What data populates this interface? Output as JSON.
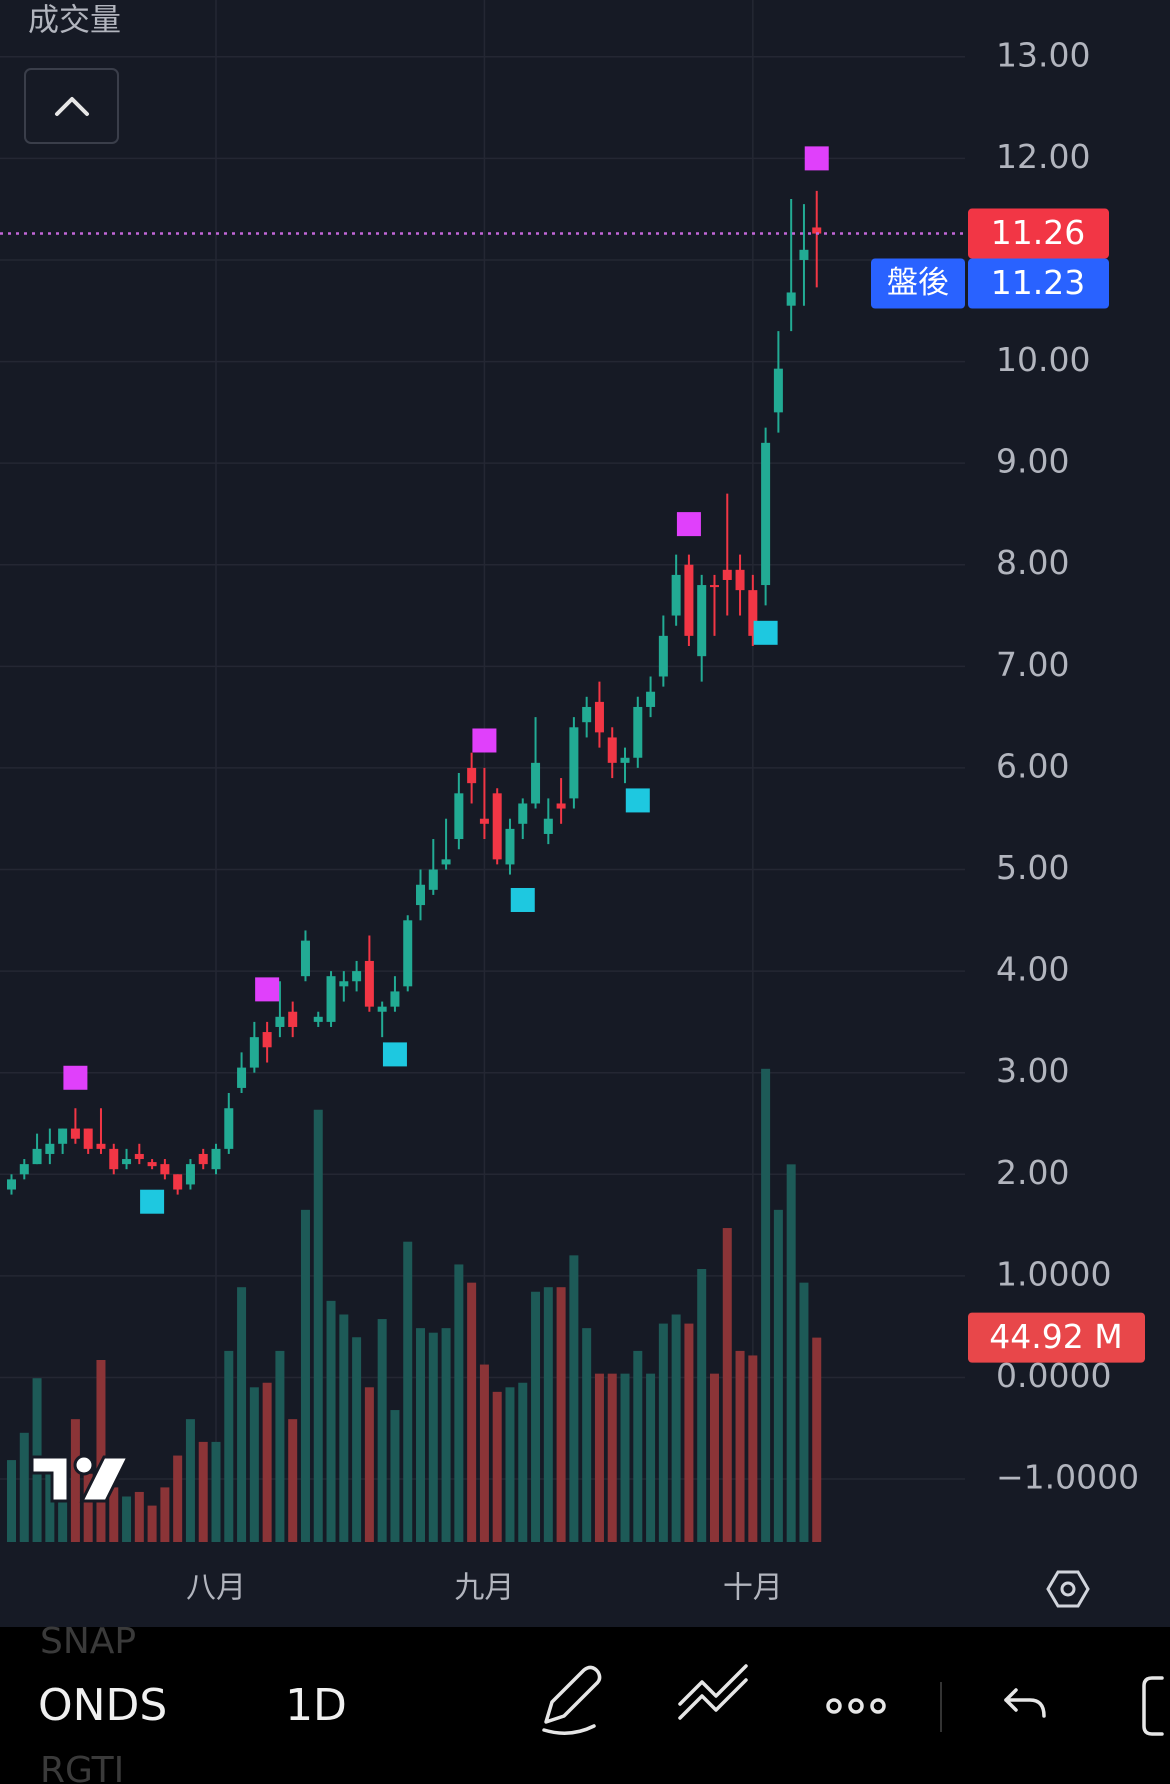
{
  "volume_label": "成交量",
  "chart_data": {
    "type": "candlestick",
    "up_color": "#22ab94",
    "down_color": "#f23645",
    "volume_up_color": "#1d5a57",
    "volume_down_color": "#8b3437",
    "ylim": [
      -1.6,
      13.5
    ],
    "yticks": [
      {
        "value": 13,
        "label": "13.00"
      },
      {
        "value": 12,
        "label": "12.00"
      },
      {
        "value": 11,
        "label": "11.00"
      },
      {
        "value": 10,
        "label": "10.00"
      },
      {
        "value": 9,
        "label": "9.00"
      },
      {
        "value": 8,
        "label": "8.00"
      },
      {
        "value": 7,
        "label": "7.00"
      },
      {
        "value": 6,
        "label": "6.00"
      },
      {
        "value": 5,
        "label": "5.00"
      },
      {
        "value": 4,
        "label": "4.00"
      },
      {
        "value": 3,
        "label": "3.00"
      },
      {
        "value": 2,
        "label": "2.00"
      },
      {
        "value": 1,
        "label": "1.0000"
      },
      {
        "value": 0,
        "label": "0.0000"
      },
      {
        "value": -1,
        "label": "−1.0000"
      }
    ],
    "xlim": [
      -0.9,
      74.6
    ],
    "xticks": [
      {
        "value": 16,
        "label": "八月"
      },
      {
        "value": 37,
        "label": "九月"
      },
      {
        "value": 58,
        "label": "十月"
      }
    ],
    "open": [
      1.85,
      2.0,
      2.1,
      2.2,
      2.3,
      2.45,
      2.45,
      2.3,
      2.25,
      2.1,
      2.2,
      2.12,
      2.1,
      2.0,
      1.9,
      2.2,
      2.05,
      2.25,
      2.85,
      3.05,
      3.4,
      3.45,
      3.6,
      3.95,
      3.5,
      3.5,
      3.85,
      3.9,
      4.1,
      3.6,
      3.65,
      3.85,
      4.65,
      4.8,
      5.05,
      5.3,
      6.0,
      5.5,
      5.75,
      5.05,
      5.45,
      5.65,
      5.35,
      5.65,
      5.7,
      6.45,
      6.65,
      6.3,
      6.05,
      6.1,
      6.6,
      6.9,
      7.5,
      8.0,
      7.1,
      7.8,
      7.95,
      7.95,
      7.75,
      7.8,
      9.5,
      10.55,
      11.0,
      11.32
    ],
    "high": [
      2.0,
      2.15,
      2.4,
      2.45,
      2.45,
      2.65,
      2.45,
      2.65,
      2.3,
      2.25,
      2.3,
      2.15,
      2.15,
      2.0,
      2.15,
      2.25,
      2.3,
      2.8,
      3.2,
      3.5,
      3.5,
      3.9,
      3.7,
      4.4,
      3.6,
      4.0,
      4.0,
      4.1,
      4.35,
      3.7,
      3.95,
      4.55,
      5.0,
      5.3,
      5.5,
      5.95,
      6.15,
      6.0,
      5.8,
      5.5,
      5.7,
      6.5,
      5.7,
      5.9,
      6.5,
      6.7,
      6.85,
      6.4,
      6.2,
      6.7,
      6.9,
      7.5,
      8.1,
      8.1,
      7.9,
      7.9,
      8.7,
      8.1,
      7.9,
      9.35,
      10.3,
      11.6,
      11.55,
      11.68
    ],
    "low": [
      1.8,
      1.95,
      2.1,
      2.1,
      2.2,
      2.3,
      2.2,
      2.2,
      2.0,
      2.05,
      2.1,
      2.05,
      1.95,
      1.8,
      1.85,
      2.05,
      2.0,
      2.2,
      2.8,
      3.0,
      3.1,
      3.35,
      3.35,
      3.9,
      3.45,
      3.45,
      3.7,
      3.8,
      3.6,
      3.35,
      3.6,
      3.8,
      4.5,
      4.75,
      5.0,
      5.2,
      5.65,
      5.3,
      5.05,
      4.95,
      5.3,
      5.6,
      5.25,
      5.45,
      5.6,
      6.3,
      6.2,
      5.9,
      5.85,
      6.0,
      6.5,
      6.8,
      7.4,
      7.2,
      6.85,
      7.3,
      7.5,
      7.5,
      7.2,
      7.6,
      9.3,
      10.3,
      10.55,
      10.73
    ],
    "close": [
      1.95,
      2.1,
      2.25,
      2.3,
      2.45,
      2.35,
      2.25,
      2.25,
      2.05,
      2.15,
      2.15,
      2.08,
      2.0,
      1.85,
      2.1,
      2.1,
      2.25,
      2.65,
      3.05,
      3.35,
      3.25,
      3.55,
      3.45,
      4.3,
      3.55,
      3.95,
      3.9,
      4.0,
      3.65,
      3.65,
      3.8,
      4.5,
      4.85,
      5.0,
      5.1,
      5.75,
      5.85,
      5.45,
      5.1,
      5.4,
      5.65,
      6.05,
      5.5,
      5.6,
      6.4,
      6.6,
      6.35,
      6.05,
      6.1,
      6.6,
      6.75,
      7.3,
      7.9,
      7.3,
      7.8,
      7.78,
      7.85,
      7.75,
      7.3,
      9.2,
      9.93,
      10.68,
      11.1,
      11.26
    ],
    "volume": {
      "vlim": [
        0,
        100
      ],
      "values": [
        18,
        24,
        36,
        18,
        10,
        27,
        15,
        40,
        12,
        10,
        11,
        8,
        12,
        19,
        27,
        22,
        22,
        42,
        56,
        34,
        35,
        42,
        27,
        73,
        95,
        53,
        50,
        45,
        34,
        49,
        29,
        66,
        47,
        46,
        47,
        61,
        57,
        39,
        33,
        34,
        35,
        55,
        56,
        56,
        63,
        47,
        37,
        37,
        37,
        42,
        37,
        48,
        50,
        48,
        60,
        37,
        69,
        42,
        41,
        104,
        73,
        83,
        57,
        44.92
      ],
      "value_labels": [
        null,
        null,
        null,
        null,
        null,
        null,
        null,
        null,
        null,
        null,
        null,
        null,
        null,
        null,
        null,
        null,
        null,
        null,
        null,
        null,
        null,
        null,
        null,
        null,
        null,
        null,
        null,
        null,
        null,
        null,
        null,
        null,
        null,
        null,
        null,
        null,
        null,
        null,
        null,
        null,
        null,
        null,
        null,
        null,
        null,
        null,
        null,
        null,
        null,
        null,
        null,
        null,
        null,
        null,
        null,
        null,
        null,
        null,
        null,
        null,
        null,
        null,
        null,
        "44.92 M"
      ]
    },
    "signals": {
      "high": {
        "color": "#e040fb",
        "x": [
          5,
          20,
          37,
          53,
          63
        ],
        "values": [
          2.95,
          3.82,
          6.27,
          8.4,
          12.0
        ]
      },
      "low": {
        "color": "#1ec8e0",
        "x": [
          11,
          30,
          40,
          49,
          59
        ],
        "values": [
          1.73,
          3.18,
          4.7,
          5.68,
          7.33
        ]
      }
    },
    "last_price": 11.26,
    "post_market": {
      "label": "盤後",
      "value": 11.23
    }
  },
  "toolbar": {
    "symbols": [
      "SNAP",
      "ONDS",
      "RGTI"
    ],
    "interval": "1D"
  }
}
